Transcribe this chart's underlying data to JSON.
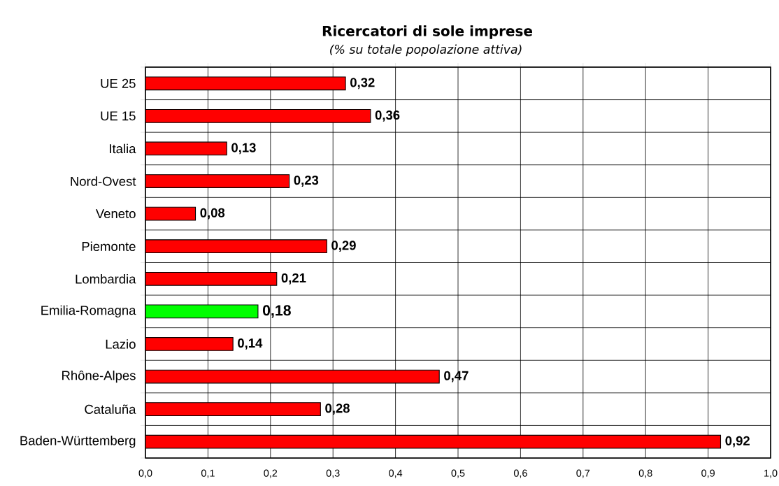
{
  "chart_data": {
    "type": "bar",
    "orientation": "horizontal",
    "title": "Ricercatori di sole imprese",
    "subtitle": "(% su totale popolazione attiva)",
    "categories": [
      "UE 25",
      "UE 15",
      "Italia",
      "Nord-Ovest",
      "Veneto",
      "Piemonte",
      "Lombardia",
      "Emilia-Romagna",
      "Lazio",
      "Rhône-Alpes",
      "Cataluña",
      "Baden-Württemberg"
    ],
    "values": [
      0.32,
      0.36,
      0.13,
      0.23,
      0.08,
      0.29,
      0.21,
      0.18,
      0.14,
      0.47,
      0.28,
      0.92
    ],
    "colors": [
      "#ff0000",
      "#ff0000",
      "#ff0000",
      "#ff0000",
      "#ff0000",
      "#ff0000",
      "#ff0000",
      "#00ff00",
      "#ff0000",
      "#ff0000",
      "#ff0000",
      "#ff0000"
    ],
    "value_labels": [
      "0,32",
      "0,36",
      "0,13",
      "0,23",
      "0,08",
      "0,29",
      "0,21",
      "0,18",
      "0,14",
      "0,47",
      "0,28",
      "0,92"
    ],
    "xlim": [
      0,
      1
    ],
    "xticks": [
      {
        "value": 0,
        "label": "0,0"
      },
      {
        "value": 0.1,
        "label": "0,1"
      },
      {
        "value": 0.2,
        "label": "0,2"
      },
      {
        "value": 0.3,
        "label": "0,3"
      },
      {
        "value": 0.4,
        "label": "0,4"
      },
      {
        "value": 0.5,
        "label": "0,5"
      },
      {
        "value": 0.6,
        "label": "0,6"
      },
      {
        "value": 0.7,
        "label": "0,7"
      },
      {
        "value": 0.8,
        "label": "0,8"
      },
      {
        "value": 0.9,
        "label": "0,9"
      },
      {
        "value": 1,
        "label": "1,0"
      }
    ],
    "grid": true
  }
}
